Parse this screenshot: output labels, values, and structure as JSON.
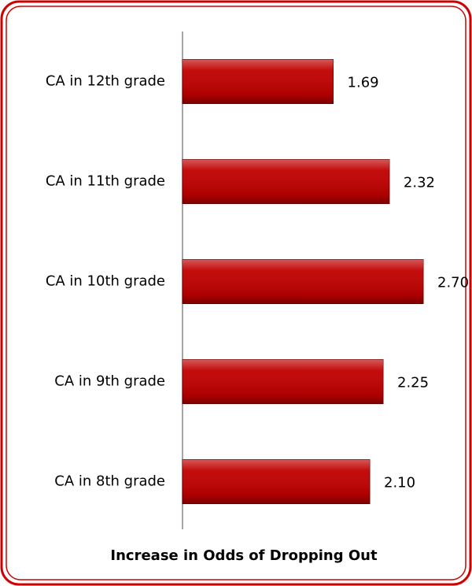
{
  "chart_data": {
    "type": "bar",
    "orientation": "horizontal",
    "x_label": "Increase in Odds of Dropping Out",
    "categories": [
      "CA in 12th grade",
      "CA in 11th grade",
      "CA in 10th grade",
      "CA in 9th grade",
      "CA in 8th grade"
    ],
    "values": [
      1.69,
      2.32,
      2.7,
      2.25,
      2.1
    ],
    "value_labels": [
      "1.69",
      "2.32",
      "2.70",
      "2.25",
      "2.10"
    ],
    "color": "#c00000",
    "xlim": [
      0,
      3
    ]
  }
}
